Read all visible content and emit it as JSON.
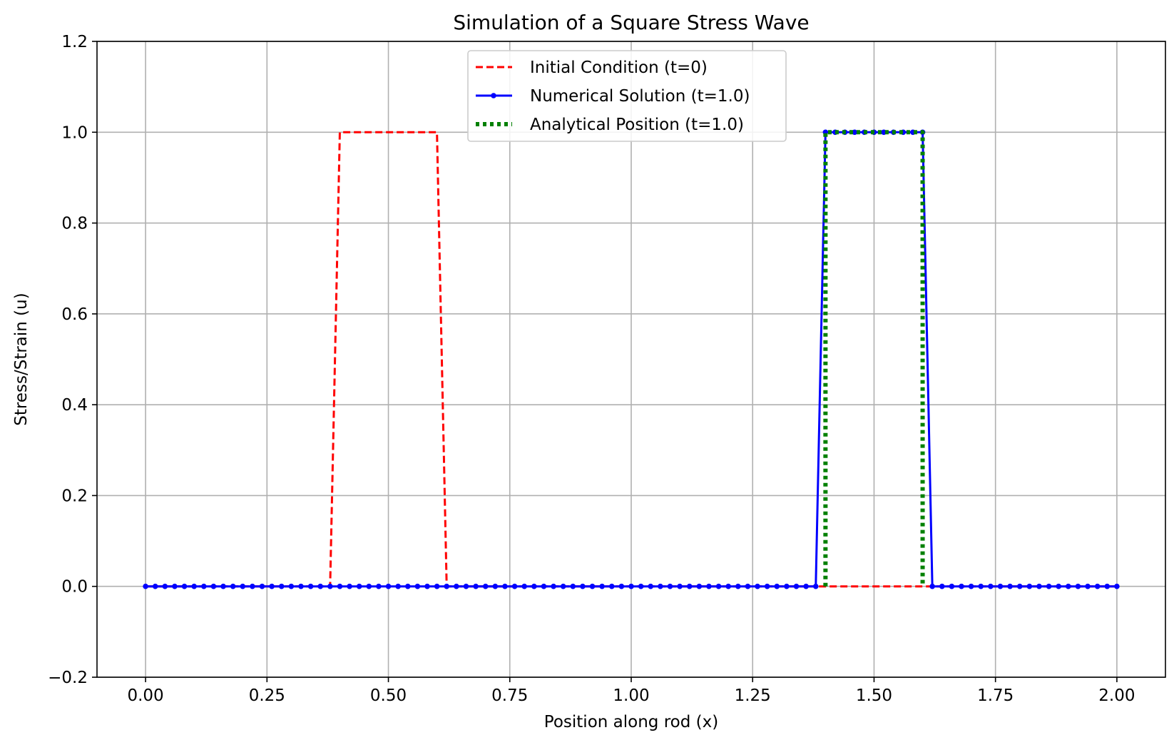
{
  "chart_data": {
    "type": "line",
    "title": "Simulation of a Square Stress Wave",
    "xlabel": "Position along rod (x)",
    "ylabel": "Stress/Strain (u)",
    "xlim": [
      -0.1,
      2.1
    ],
    "ylim": [
      -0.2,
      1.2
    ],
    "xticks": [
      0.0,
      0.25,
      0.5,
      0.75,
      1.0,
      1.25,
      1.5,
      1.75,
      2.0
    ],
    "xtick_labels": [
      "0.00",
      "0.25",
      "0.50",
      "0.75",
      "1.00",
      "1.25",
      "1.50",
      "1.75",
      "2.00"
    ],
    "yticks": [
      -0.2,
      0.0,
      0.2,
      0.4,
      0.6,
      0.8,
      1.0,
      1.2
    ],
    "ytick_labels": [
      "−0.2",
      "0.0",
      "0.2",
      "0.4",
      "0.6",
      "0.8",
      "1.0",
      "1.2"
    ],
    "grid": true,
    "legend_position": "top-center",
    "grid_resolution": {
      "x_start": 0.0,
      "x_end": 2.0,
      "step": 0.02
    },
    "series": [
      {
        "name": "Initial Condition (t=0)",
        "style": "dashed",
        "color": "#ff0000",
        "markers": false,
        "pulse": {
          "start": 0.4,
          "end": 0.6,
          "amplitude": 1.0
        }
      },
      {
        "name": "Numerical Solution (t=1.0)",
        "style": "solid",
        "color": "#0000ff",
        "markers": true,
        "pulse": {
          "start": 1.4,
          "end": 1.6,
          "amplitude": 1.0
        }
      },
      {
        "name": "Analytical Position (t=1.0)",
        "style": "dotted",
        "color": "#008000",
        "markers": false,
        "x": [
          1.4,
          1.4,
          1.6,
          1.6
        ],
        "y": [
          0.0,
          1.0,
          1.0,
          0.0
        ]
      }
    ]
  }
}
